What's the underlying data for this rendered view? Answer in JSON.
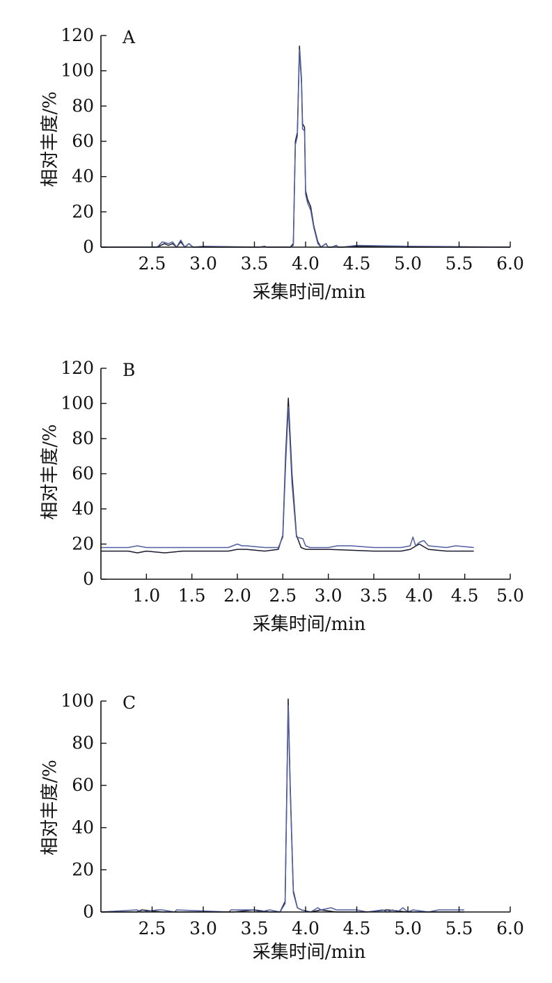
{
  "colors": {
    "axis": "#111111",
    "trace_dark": "#1a1a2e",
    "trace_blue": "#4f5f9f"
  },
  "chart_data": [
    {
      "type": "line",
      "panel_label": "A",
      "xlabel": "采集时间/min",
      "ylabel": "相对丰度/%",
      "xlim": [
        2.0,
        6.0
      ],
      "ylim": [
        0,
        120
      ],
      "xticks": [
        2.5,
        3.0,
        3.5,
        4.0,
        4.5,
        5.0,
        5.5,
        6.0
      ],
      "yticks": [
        0,
        20,
        40,
        60,
        80,
        100,
        120
      ],
      "grid": false,
      "series": [
        {
          "color": "#1a1a2e",
          "x": [
            2.0,
            2.55,
            2.62,
            2.66,
            2.7,
            2.74,
            2.78,
            2.82,
            2.86,
            2.9,
            3.0,
            3.55,
            3.6,
            3.62,
            3.85,
            3.88,
            3.9,
            3.92,
            3.94,
            3.96,
            3.97,
            3.99,
            4.0,
            4.02,
            4.05,
            4.08,
            4.12,
            4.15,
            4.2,
            4.22,
            4.26,
            4.3,
            4.32,
            4.36,
            4.5,
            5.0,
            6.0
          ],
          "y": [
            0,
            0,
            2,
            1,
            2,
            0,
            3,
            0,
            2,
            0,
            0,
            0,
            0.5,
            0,
            0,
            2,
            60,
            65,
            114,
            95,
            70,
            68,
            32,
            27,
            23,
            12,
            3,
            0,
            2,
            0,
            0,
            1,
            0,
            0,
            0.5,
            0,
            0
          ]
        },
        {
          "color": "#4f5f9f",
          "x": [
            2.0,
            2.55,
            2.6,
            2.66,
            2.7,
            2.74,
            2.78,
            2.82,
            2.86,
            2.9,
            3.0,
            3.55,
            3.6,
            3.62,
            3.85,
            3.88,
            3.9,
            3.92,
            3.94,
            3.96,
            3.97,
            3.99,
            4.0,
            4.02,
            4.05,
            4.08,
            4.12,
            4.15,
            4.2,
            4.22,
            4.26,
            4.3,
            4.32,
            4.36,
            4.5,
            5.0,
            6.0
          ],
          "y": [
            0,
            0,
            3,
            2,
            3,
            0,
            4,
            0,
            2,
            0,
            0.5,
            0,
            0.5,
            0,
            0,
            1,
            58,
            63,
            112,
            93,
            67,
            66,
            30,
            25,
            21,
            11,
            2,
            0,
            2,
            0,
            0,
            1,
            0,
            0,
            1,
            0.5,
            0
          ]
        }
      ]
    },
    {
      "type": "line",
      "panel_label": "B",
      "xlabel": "采集时间/min",
      "ylabel": "相对丰度/%",
      "xlim": [
        0.5,
        5.0
      ],
      "ylim": [
        0,
        120
      ],
      "xticks": [
        1.0,
        1.5,
        2.0,
        2.5,
        3.0,
        3.5,
        4.0,
        4.5,
        5.0
      ],
      "yticks": [
        0,
        20,
        40,
        60,
        80,
        100,
        120
      ],
      "grid": false,
      "series": [
        {
          "color": "#1a1a2e",
          "x": [
            0.5,
            0.8,
            0.9,
            1.0,
            1.2,
            1.4,
            1.9,
            2.0,
            2.1,
            2.3,
            2.45,
            2.5,
            2.53,
            2.56,
            2.6,
            2.65,
            2.7,
            2.75,
            3.0,
            3.5,
            3.7,
            3.8,
            3.9,
            4.0,
            4.1,
            4.3,
            4.6
          ],
          "y": [
            16,
            16,
            15,
            16,
            15,
            16,
            16,
            17,
            17,
            16,
            17,
            25,
            70,
            103,
            60,
            25,
            18,
            17,
            17,
            16,
            16,
            16,
            17,
            20,
            17,
            16,
            16
          ]
        },
        {
          "color": "#4f5f9f",
          "x": [
            0.5,
            0.8,
            0.9,
            1.0,
            1.2,
            1.4,
            1.9,
            2.0,
            2.05,
            2.1,
            2.3,
            2.45,
            2.5,
            2.53,
            2.56,
            2.6,
            2.65,
            2.72,
            2.75,
            2.8,
            3.0,
            3.1,
            3.25,
            3.5,
            3.7,
            3.8,
            3.9,
            3.93,
            3.96,
            4.0,
            4.05,
            4.1,
            4.3,
            4.4,
            4.6
          ],
          "y": [
            18,
            18,
            19,
            18,
            18,
            18,
            18,
            20,
            19,
            19,
            18,
            18,
            24,
            65,
            98,
            55,
            24,
            23,
            19,
            18,
            18,
            19,
            19,
            18,
            18,
            18,
            19,
            24,
            19,
            21,
            22,
            19,
            18,
            19,
            18
          ]
        }
      ]
    },
    {
      "type": "line",
      "panel_label": "C",
      "xlabel": "采集时间/min",
      "ylabel": "相对丰度/%",
      "xlim": [
        2.0,
        6.0
      ],
      "ylim": [
        0,
        100
      ],
      "xticks": [
        2.5,
        3.0,
        3.5,
        4.0,
        4.5,
        5.0,
        5.5,
        6.0
      ],
      "yticks": [
        0,
        20,
        40,
        60,
        80,
        100
      ],
      "grid": false,
      "series": [
        {
          "color": "#1a1a2e",
          "x": [
            2.0,
            2.35,
            2.4,
            2.6,
            2.7,
            3.3,
            3.5,
            3.65,
            3.75,
            3.8,
            3.83,
            3.85,
            3.88,
            3.92,
            3.96,
            4.05,
            4.15,
            4.3,
            4.6,
            4.8,
            5.0,
            5.3,
            5.55
          ],
          "y": [
            0,
            0,
            1,
            0,
            0,
            0,
            1,
            0,
            0,
            5,
            101,
            60,
            10,
            2,
            1,
            0,
            1,
            0,
            0,
            1,
            0,
            0,
            0
          ]
        },
        {
          "color": "#4f5f9f",
          "x": [
            2.0,
            2.35,
            2.4,
            2.55,
            2.6,
            2.72,
            2.74,
            3.25,
            3.27,
            3.5,
            3.55,
            3.65,
            3.75,
            3.8,
            3.83,
            3.85,
            3.88,
            3.92,
            3.96,
            4.05,
            4.12,
            4.15,
            4.25,
            4.3,
            4.5,
            4.6,
            4.75,
            4.8,
            4.85,
            4.9,
            4.95,
            5.0,
            5.05,
            5.2,
            5.3,
            5.55
          ],
          "y": [
            0,
            1,
            0,
            1,
            1,
            0,
            1,
            0,
            1,
            1,
            0,
            1,
            0,
            4,
            98,
            58,
            9,
            2,
            1,
            0,
            2,
            1,
            2,
            1,
            1,
            0,
            1,
            0,
            1,
            0,
            2,
            0,
            1,
            0,
            1,
            1
          ]
        }
      ]
    }
  ]
}
